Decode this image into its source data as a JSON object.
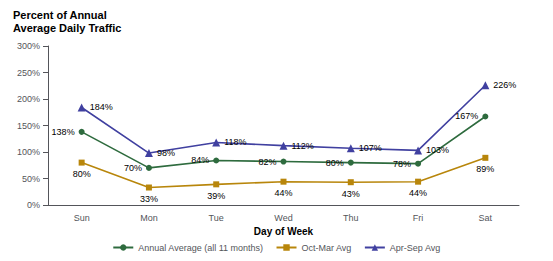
{
  "chart_data": {
    "type": "line",
    "title": "Percent of Annual",
    "subtitle": "Average Daily Traffic",
    "xlabel": "Day of Week",
    "categories": [
      "Sun",
      "Mon",
      "Tue",
      "Wed",
      "Thu",
      "Fri",
      "Sat"
    ],
    "series": [
      {
        "name": "Annual Average (all 11 months)",
        "color": "#2E6B3E",
        "marker": "circle",
        "values": [
          138,
          70,
          84,
          82,
          80,
          78,
          167
        ],
        "value_labels": [
          "138%",
          "70%",
          "84%",
          "82%",
          "80%",
          "78%",
          "167%"
        ]
      },
      {
        "name": "Oct-Mar Avg",
        "color": "#B8860B",
        "marker": "square",
        "values": [
          80,
          33,
          39,
          44,
          43,
          44,
          89
        ],
        "value_labels": [
          "80%",
          "33%",
          "39%",
          "44%",
          "43%",
          "44%",
          "89%"
        ]
      },
      {
        "name": "Apr-Sep Avg",
        "color": "#4040A0",
        "marker": "triangle",
        "values": [
          184,
          98,
          118,
          112,
          107,
          103,
          226
        ],
        "value_labels": [
          "184%",
          "98%",
          "118%",
          "112%",
          "107%",
          "103%",
          "226%"
        ]
      }
    ],
    "ylim": [
      0,
      300
    ],
    "yticks": [
      {
        "value": 0,
        "label": "0%"
      },
      {
        "value": 50,
        "label": "50%"
      },
      {
        "value": 100,
        "label": "100%"
      },
      {
        "value": 150,
        "label": "150%"
      },
      {
        "value": 200,
        "label": "200%"
      },
      {
        "value": 250,
        "label": "250%"
      },
      {
        "value": 300,
        "label": "300%"
      }
    ],
    "grid": false,
    "legend": "bottom",
    "data_labels": true
  }
}
